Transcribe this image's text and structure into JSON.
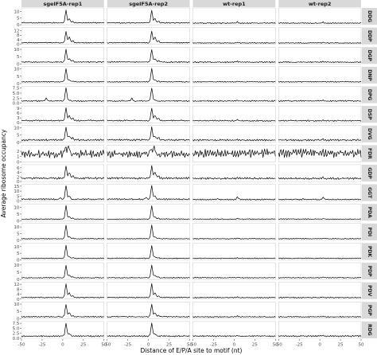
{
  "chart_data": {
    "type": "line",
    "layout": "faceted-grid",
    "xlabel": "Distance of E/P/A site to motif (nt)",
    "ylabel": "Average ribosome occupancy",
    "xlim": [
      -50,
      50
    ],
    "x_ticks": [
      -50,
      -25,
      0,
      25,
      50
    ],
    "x_tick_labels": [
      "-50",
      "-25",
      "0",
      "25",
      "50"
    ],
    "columns": [
      "sgeIF5A-rep1",
      "sgeIF5A-rep2",
      "wt-rep1",
      "wt-rep2"
    ],
    "rows": [
      {
        "motif": "DDG",
        "ylim": [
          0,
          12
        ],
        "ticks": [
          0,
          5,
          10
        ],
        "tick_labels": [
          "0",
          "5",
          "10"
        ]
      },
      {
        "motif": "DDP",
        "ylim": [
          0,
          14
        ],
        "ticks": [
          0,
          4,
          8,
          12
        ],
        "tick_labels": [
          "0",
          "4",
          "8",
          "12"
        ]
      },
      {
        "motif": "DGP",
        "ylim": [
          0,
          11
        ],
        "ticks": [
          0,
          5,
          10
        ],
        "tick_labels": [
          "0",
          "5",
          "10"
        ]
      },
      {
        "motif": "DNP",
        "ylim": [
          0,
          11
        ],
        "ticks": [
          0,
          5,
          10
        ],
        "tick_labels": [
          "0",
          "5",
          "10"
        ]
      },
      {
        "motif": "DPG",
        "ylim": [
          0,
          8
        ],
        "ticks": [
          0,
          2.5,
          5,
          7.5
        ],
        "tick_labels": [
          "0.0",
          "2.5",
          "5.0",
          "7.5"
        ]
      },
      {
        "motif": "DSP",
        "ylim": [
          0,
          10
        ],
        "ticks": [
          0,
          3,
          6,
          9
        ],
        "tick_labels": [
          "0",
          "3",
          "6",
          "9"
        ]
      },
      {
        "motif": "DVG",
        "ylim": [
          0,
          11
        ],
        "ticks": [
          0,
          5,
          10
        ],
        "tick_labels": [
          "0",
          "5",
          "10"
        ]
      },
      {
        "motif": "FDR",
        "ylim": [
          0,
          3
        ],
        "ticks": [
          0,
          1,
          2
        ],
        "tick_labels": [
          "0",
          "1",
          "2"
        ]
      },
      {
        "motif": "GDP",
        "ylim": [
          0,
          7
        ],
        "ticks": [
          0,
          2,
          4,
          6
        ],
        "tick_labels": [
          "0",
          "2",
          "4",
          "6"
        ]
      },
      {
        "motif": "GGT",
        "ylim": [
          0,
          16
        ],
        "ticks": [
          0,
          5,
          10,
          15
        ],
        "tick_labels": [
          "0",
          "5",
          "10",
          "15"
        ]
      },
      {
        "motif": "PDA",
        "ylim": [
          0,
          12
        ],
        "ticks": [
          0,
          5,
          10
        ],
        "tick_labels": [
          "0",
          "5",
          "10"
        ]
      },
      {
        "motif": "PDI",
        "ylim": [
          0,
          12
        ],
        "ticks": [
          0,
          5,
          10
        ],
        "tick_labels": [
          "0",
          "5",
          "10"
        ]
      },
      {
        "motif": "PDK",
        "ylim": [
          0,
          12
        ],
        "ticks": [
          0,
          5,
          10
        ],
        "tick_labels": [
          "0",
          "5",
          "10"
        ]
      },
      {
        "motif": "PDP",
        "ylim": [
          0,
          11
        ],
        "ticks": [
          0,
          5,
          10
        ],
        "tick_labels": [
          "0",
          "5",
          "10"
        ]
      },
      {
        "motif": "PDV",
        "ylim": [
          0,
          13
        ],
        "ticks": [
          0,
          4,
          8,
          12
        ],
        "tick_labels": [
          "0",
          "4",
          "8",
          "12"
        ]
      },
      {
        "motif": "PGP",
        "ylim": [
          0,
          11
        ],
        "ticks": [
          0,
          5,
          10
        ],
        "tick_labels": [
          "0",
          "5",
          "10"
        ]
      },
      {
        "motif": "RDG",
        "ylim": [
          0,
          8
        ],
        "ticks": [
          0,
          2.5,
          5,
          7.5
        ],
        "tick_labels": [
          "0.0",
          "2.5",
          "5.0",
          "7.5"
        ]
      }
    ],
    "profiles": {
      "DDG": {
        "sgeIF5A": {
          "peaks": [
            [
              4,
              10.5
            ],
            [
              8,
              4.5
            ],
            [
              12,
              2.5
            ]
          ],
          "base": 1.2,
          "noise": 0.5
        },
        "wt": {
          "peaks": [
            [
              4,
              1.8
            ],
            [
              -20,
              1.2
            ]
          ],
          "base": 1.0,
          "noise": 0.5
        }
      },
      "DDP": {
        "sgeIF5A": {
          "peaks": [
            [
              4,
              11
            ],
            [
              8,
              6.5
            ],
            [
              12,
              3
            ]
          ],
          "base": 1.2,
          "noise": 0.5
        },
        "wt": {
          "peaks": [
            [
              4,
              1.5
            ],
            [
              -20,
              1
            ]
          ],
          "base": 1.0,
          "noise": 0.5
        }
      },
      "DGP": {
        "sgeIF5A": {
          "peaks": [
            [
              4,
              9.5
            ],
            [
              8,
              3.5
            ],
            [
              12,
              2
            ]
          ],
          "base": 1.1,
          "noise": 0.5
        },
        "wt": {
          "peaks": [
            [
              4,
              1.5
            ]
          ],
          "base": 1.0,
          "noise": 0.5
        }
      },
      "DNP": {
        "sgeIF5A": {
          "peaks": [
            [
              4,
              10
            ],
            [
              8,
              2.5
            ],
            [
              12,
              1.5
            ]
          ],
          "base": 1.0,
          "noise": 0.4
        },
        "wt": {
          "peaks": [
            [
              4,
              1.2
            ]
          ],
          "base": 1.0,
          "noise": 0.4
        }
      },
      "DPG": {
        "sgeIF5A": {
          "peaks": [
            [
              4,
              7.2
            ],
            [
              -20,
              2.2
            ],
            [
              8,
              1.5
            ]
          ],
          "base": 0.9,
          "noise": 0.4
        },
        "wt": {
          "peaks": [
            [
              4,
              1.3
            ]
          ],
          "base": 0.9,
          "noise": 0.4
        }
      },
      "DSP": {
        "sgeIF5A": {
          "peaks": [
            [
              4,
              8.8
            ],
            [
              8,
              4.5
            ],
            [
              12,
              2.5
            ]
          ],
          "base": 1.1,
          "noise": 0.5
        },
        "wt": {
          "peaks": [
            [
              4,
              1.4
            ]
          ],
          "base": 1.0,
          "noise": 0.5
        }
      },
      "DVG": {
        "sgeIF5A": {
          "peaks": [
            [
              4,
              10
            ],
            [
              8,
              4.2
            ],
            [
              12,
              3
            ]
          ],
          "base": 1.3,
          "noise": 0.7
        },
        "wt": {
          "peaks": [
            [
              4,
              1.6
            ]
          ],
          "base": 1.2,
          "noise": 0.7
        }
      },
      "FDR": {
        "sgeIF5A": {
          "peaks": [
            [
              7,
              2.6
            ],
            [
              3,
              2.3
            ]
          ],
          "base": 1.1,
          "noise": 0.8
        },
        "wt": {
          "peaks": [],
          "base": 1.2,
          "noise": 0.9
        }
      },
      "GDP": {
        "sgeIF5A": {
          "peaks": [
            [
              4,
              6.3
            ],
            [
              8,
              3.8
            ],
            [
              12,
              2.2
            ]
          ],
          "base": 1.2,
          "noise": 0.5
        },
        "wt": {
          "peaks": [
            [
              4,
              1.6
            ]
          ],
          "base": 1.1,
          "noise": 0.5
        }
      },
      "GGT": {
        "sgeIF5A": {
          "peaks": [
            [
              4,
              15
            ],
            [
              8,
              5
            ],
            [
              -3,
              3
            ]
          ],
          "base": 1.5,
          "noise": 0.8
        },
        "wt": {
          "peaks": [
            [
              4,
              3.5
            ],
            [
              -20,
              2
            ]
          ],
          "base": 1.3,
          "noise": 0.7
        }
      },
      "PDA": {
        "sgeIF5A": {
          "peaks": [
            [
              4,
              11
            ],
            [
              8,
              3
            ],
            [
              12,
              1.8
            ]
          ],
          "base": 1.0,
          "noise": 0.4
        },
        "wt": {
          "peaks": [
            [
              4,
              1.4
            ]
          ],
          "base": 1.0,
          "noise": 0.4
        }
      },
      "PDI": {
        "sgeIF5A": {
          "peaks": [
            [
              4,
              11
            ],
            [
              8,
              2.5
            ],
            [
              12,
              1.5
            ]
          ],
          "base": 1.0,
          "noise": 0.4
        },
        "wt": {
          "peaks": [
            [
              4,
              1.3
            ]
          ],
          "base": 1.0,
          "noise": 0.4
        }
      },
      "PDK": {
        "sgeIF5A": {
          "peaks": [
            [
              4,
              10.5
            ],
            [
              8,
              2.2
            ],
            [
              12,
              1.5
            ]
          ],
          "base": 1.0,
          "noise": 0.4
        },
        "wt": {
          "peaks": [
            [
              4,
              1.2
            ]
          ],
          "base": 1.0,
          "noise": 0.4
        }
      },
      "PDP": {
        "sgeIF5A": {
          "peaks": [
            [
              4,
              9.5
            ],
            [
              8,
              3
            ],
            [
              12,
              1.6
            ]
          ],
          "base": 1.0,
          "noise": 0.4
        },
        "wt": {
          "peaks": [
            [
              4,
              1.3
            ]
          ],
          "base": 1.0,
          "noise": 0.4
        }
      },
      "PDV": {
        "sgeIF5A": {
          "peaks": [
            [
              4,
              12
            ],
            [
              8,
              5
            ],
            [
              12,
              2.5
            ]
          ],
          "base": 1.1,
          "noise": 0.5
        },
        "wt": {
          "peaks": [
            [
              4,
              1.4
            ]
          ],
          "base": 1.0,
          "noise": 0.5
        }
      },
      "PGP": {
        "sgeIF5A": {
          "peaks": [
            [
              4,
              9.5
            ],
            [
              8,
              4
            ],
            [
              12,
              2
            ]
          ],
          "base": 1.1,
          "noise": 0.5
        },
        "wt": {
          "peaks": [
            [
              4,
              1.4
            ]
          ],
          "base": 1.0,
          "noise": 0.5
        }
      },
      "RDG": {
        "sgeIF5A": {
          "peaks": [
            [
              4,
              7.3
            ],
            [
              8,
              2.2
            ]
          ],
          "base": 0.9,
          "noise": 0.4
        },
        "wt": {
          "peaks": [
            [
              4,
              1.2
            ]
          ],
          "base": 0.9,
          "noise": 0.4
        }
      }
    },
    "colors": {
      "line": "#000000",
      "panel_background": "#ffffff",
      "strip_background": "#d9d9d9",
      "panel_border": "#bdbdbd",
      "tick": "#333333"
    },
    "grid": false,
    "legend": "none"
  }
}
